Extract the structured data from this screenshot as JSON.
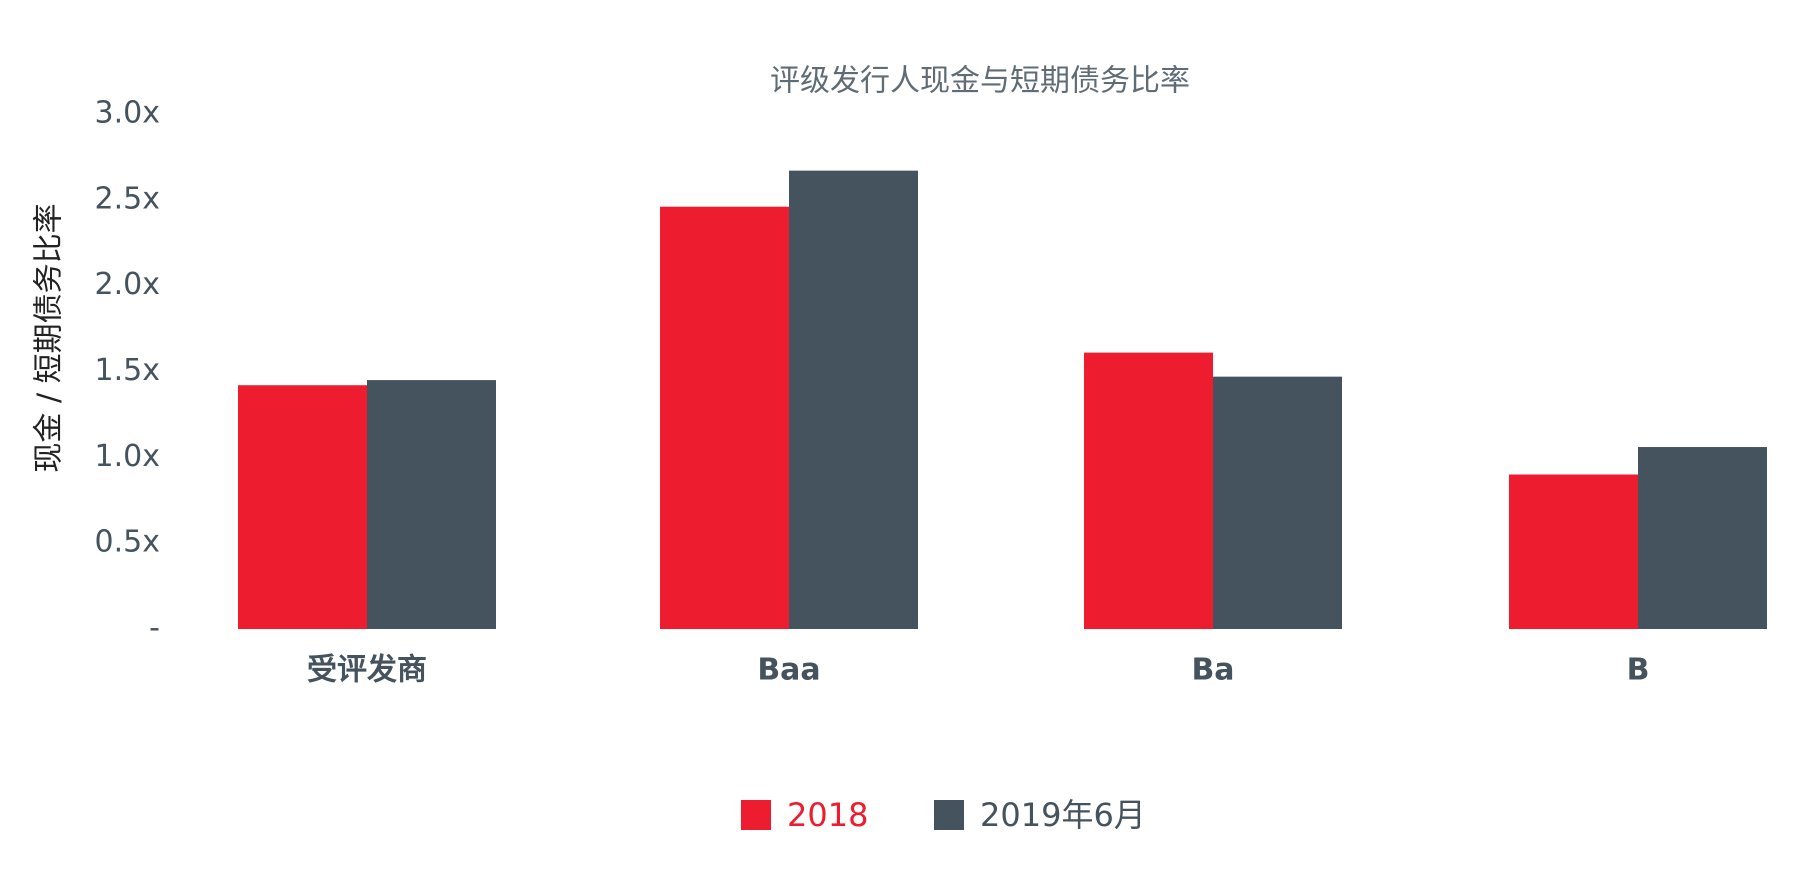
{
  "chart_data": {
    "type": "bar",
    "title": "评级发行人现金与短期债务比率",
    "y_label": "现金 / 短期债务比率",
    "categories": [
      "受评发商",
      "Baa",
      "Ba",
      "B"
    ],
    "series": [
      {
        "name": "2018",
        "color": "#ed1c2e",
        "values": [
          1.42,
          2.46,
          1.61,
          0.9
        ]
      },
      {
        "name": "2019年6月",
        "color": "#45535e",
        "values": [
          1.45,
          2.67,
          1.47,
          1.06
        ]
      }
    ],
    "ylim": [
      0,
      3.0
    ],
    "yticks": [
      {
        "value": 0,
        "label": "-"
      },
      {
        "value": 0.5,
        "label": "0.5x"
      },
      {
        "value": 1.0,
        "label": "1.0x"
      },
      {
        "value": 1.5,
        "label": "1.5x"
      },
      {
        "value": 2.0,
        "label": "2.0x"
      },
      {
        "value": 2.5,
        "label": "2.5x"
      },
      {
        "value": 3.0,
        "label": "3.0x"
      }
    ],
    "grid": false,
    "legend": "bottom"
  }
}
